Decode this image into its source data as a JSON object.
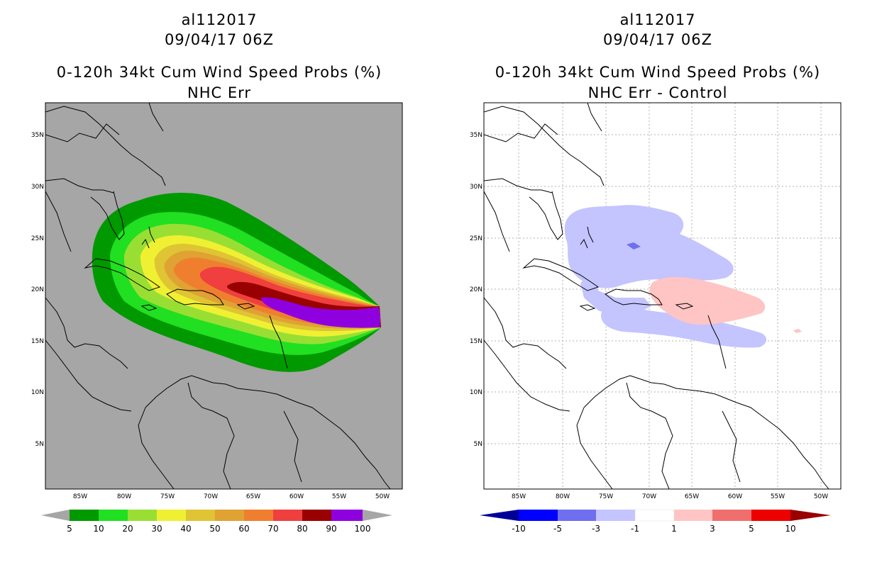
{
  "map_data": {
    "storm_id": "al112017",
    "datetime": "09/04/17 06Z",
    "product": "0-120h 34kt Cum Wind Speed Probs (%)",
    "lon_ticks": [
      "85W",
      "80W",
      "75W",
      "70W",
      "65W",
      "60W",
      "55W",
      "50W"
    ],
    "lat_ticks": [
      "35N",
      "30N",
      "25N",
      "20N",
      "15N",
      "10N",
      "5N"
    ],
    "panels": [
      {
        "id": "left",
        "subtitle": "NHC Err",
        "colorbar": {
          "labels": [
            "5",
            "10",
            "20",
            "30",
            "40",
            "50",
            "60",
            "70",
            "80",
            "90",
            "100"
          ],
          "colors": [
            "#009900",
            "#21df21",
            "#99df33",
            "#f0f033",
            "#dfc433",
            "#dfa233",
            "#ef7f2f",
            "#ef3f3f",
            "#990000",
            "#8f00df"
          ],
          "end_color": "#a6a6a6"
        }
      },
      {
        "id": "right",
        "subtitle": "NHC Err - Control",
        "colorbar": {
          "labels": [
            "-10",
            "-5",
            "-3",
            "-1",
            "1",
            "3",
            "5",
            "10"
          ],
          "colors": [
            "#0000ff",
            "#6f6fef",
            "#c4c4ff",
            "#ffffff",
            "#ffc4c4",
            "#ef6f6f",
            "#ef0000"
          ],
          "low_color": "#000099",
          "high_color": "#990000"
        }
      }
    ]
  }
}
